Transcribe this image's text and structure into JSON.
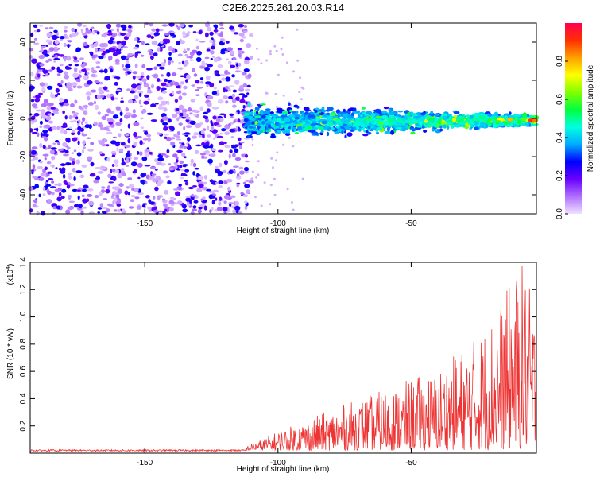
{
  "figure_title": "C2E6.2025.261.20.03.R14",
  "chart_data": [
    {
      "type": "heatmap",
      "title": "C2E6.2025.261.20.03.R14",
      "xlabel": "Height of straight line (km)",
      "ylabel": "Frequency (Hz)",
      "xlim": [
        -193,
        -3
      ],
      "ylim": [
        -50,
        50
      ],
      "xticks": [
        -150,
        -100,
        -50
      ],
      "yticks": [
        -40,
        -20,
        0,
        20,
        40
      ],
      "colorbar": {
        "label": "Normalized spectral amplitude",
        "range": [
          0,
          1
        ],
        "ticks": [
          "0.0",
          "0.2",
          "0.4",
          "0.6",
          "0.8"
        ],
        "tick_values": [
          0.0,
          0.2,
          0.4,
          0.6,
          0.8
        ],
        "colors": [
          "#f0e0ff",
          "#b070ff",
          "#6a00ff",
          "#0000ff",
          "#00aaff",
          "#00ffe0",
          "#00ff40",
          "#80ff00",
          "#ffff00",
          "#ffa000",
          "#ff3000",
          "#ff0050"
        ]
      },
      "regions": [
        {
          "name": "noise",
          "x_from": -193,
          "x_to": -110,
          "freq_band": [
            -50,
            50
          ],
          "amplitude": 0.1
        },
        {
          "name": "signal-band",
          "x_from": -112,
          "x_to": -3,
          "center_freq_at_start": -2,
          "center_freq_at_end": -1,
          "halfwidth_at_start": 9,
          "halfwidth_at_end": 3,
          "peak_amplitude": 0.95
        }
      ]
    },
    {
      "type": "line",
      "xlabel": "Height of straight line (km)",
      "ylabel": "SNR (10 * v/v)",
      "scale_label": "(x10",
      "scale_exp": "4",
      "xlim": [
        -193,
        -3
      ],
      "ylim": [
        0,
        1.4
      ],
      "xticks": [
        -150,
        -100,
        -50
      ],
      "yticks": [
        0.2,
        0.4,
        0.6,
        0.8,
        1.0,
        1.2,
        1.4
      ],
      "ytick_labels": [
        "0.2",
        "0.4",
        "0.6",
        "0.8",
        "1.0",
        "1.2",
        "1.4"
      ],
      "series": [
        {
          "name": "SNR",
          "color": "#ee3333",
          "baseline": 0.02,
          "envelope_x": [
            -193,
            -112,
            -100,
            -80,
            -60,
            -40,
            -25,
            -15,
            -8,
            -3
          ],
          "envelope_y": [
            0.03,
            0.03,
            0.14,
            0.3,
            0.45,
            0.6,
            0.85,
            1.15,
            1.4,
            1.0
          ]
        }
      ]
    }
  ]
}
